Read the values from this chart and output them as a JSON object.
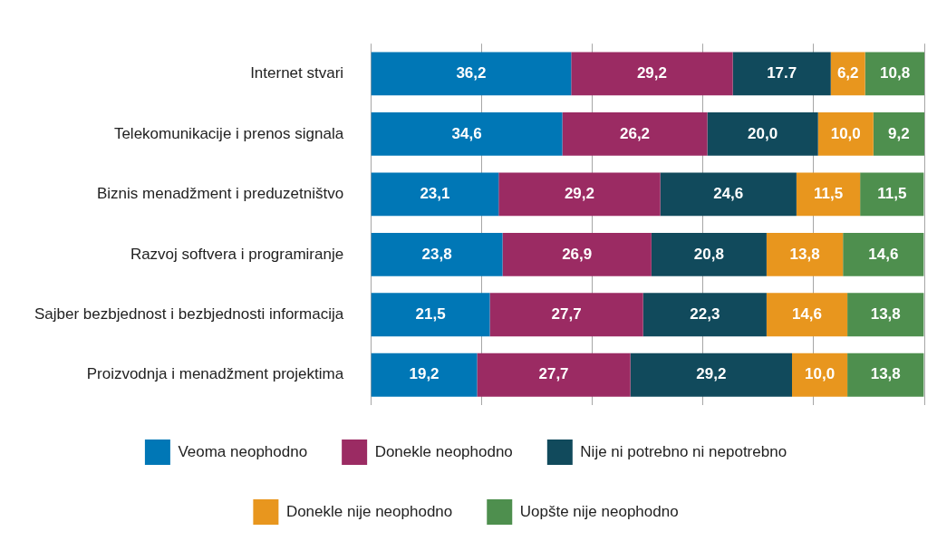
{
  "chart_data": {
    "type": "bar",
    "orientation": "horizontal",
    "stacked": true,
    "categories": [
      "Internet stvari",
      "Telekomunikacije i prenos signala",
      "Biznis menadžment i preduzetništvo",
      "Razvoj softvera i programiranje",
      "Sajber bezbjednost i bezbjednosti informacija",
      "Proizvodnja i menadžment projektima"
    ],
    "series": [
      {
        "name": "Veoma neophodno",
        "color": "#0077b6",
        "values": [
          36.2,
          34.6,
          23.1,
          23.8,
          21.5,
          19.2
        ],
        "value_labels": [
          "36,2",
          "34,6",
          "23,1",
          "23,8",
          "21,5",
          "19,2"
        ]
      },
      {
        "name": "Donekle neophodno",
        "color": "#9b2b63",
        "values": [
          29.2,
          26.2,
          29.2,
          26.9,
          27.7,
          27.7
        ],
        "value_labels": [
          "29,2",
          "26,2",
          "29,2",
          "26,9",
          "27,7",
          "27,7"
        ]
      },
      {
        "name": "Nije ni potrebno ni nepotrebno",
        "color": "#114a5c",
        "values": [
          17.7,
          20.0,
          24.6,
          20.8,
          22.3,
          29.2
        ],
        "value_labels": [
          "17.7",
          "20,0",
          "24,6",
          "20,8",
          "22,3",
          "29,2"
        ]
      },
      {
        "name": "Donekle nije neophodno",
        "color": "#e8961e",
        "values": [
          6.2,
          10.0,
          11.5,
          13.8,
          14.6,
          10.0
        ],
        "value_labels": [
          "6,2",
          "10,0",
          "11,5",
          "13,8",
          "14,6",
          "10,0"
        ]
      },
      {
        "name": "Uopšte nije neophodno",
        "color": "#4e8f4e",
        "values": [
          10.8,
          9.2,
          11.5,
          14.6,
          13.8,
          13.8
        ],
        "value_labels": [
          "10,8",
          "9,2",
          "11,5",
          "14,6",
          "13,8",
          "13,8"
        ]
      }
    ],
    "xlim": [
      0,
      100
    ],
    "xticks": [
      {
        "value": 0,
        "label": null
      },
      {
        "value": 20,
        "label": null
      },
      {
        "value": 40,
        "label": null
      },
      {
        "value": 60,
        "label": null
      },
      {
        "value": 80,
        "label": null
      },
      {
        "value": 100,
        "label": null
      }
    ],
    "grid": "x",
    "legend": "bottom",
    "tick_labels": "y"
  }
}
